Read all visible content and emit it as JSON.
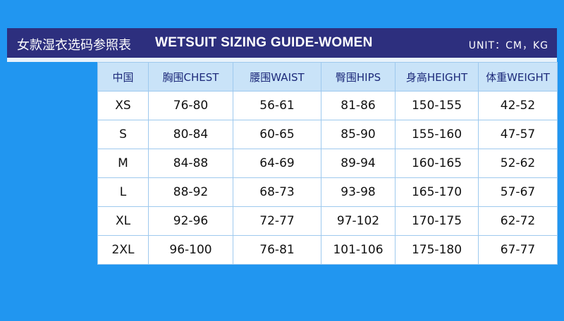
{
  "header": {
    "title_cn": "女款湿衣选码参照表",
    "title_en": "WETSUIT SIZING GUIDE-WOMEN",
    "unit": "UNIT：CM，KG"
  },
  "table": {
    "columns": [
      "中国",
      "胸围CHEST",
      "腰围WAIST",
      "臀围HIPS",
      "身高HEIGHT",
      "体重WEIGHT"
    ],
    "rows": [
      [
        "XS",
        "76-80",
        "56-61",
        "81-86",
        "150-155",
        "42-52"
      ],
      [
        "S",
        "80-84",
        "60-65",
        "85-90",
        "155-160",
        "47-57"
      ],
      [
        "M",
        "84-88",
        "64-69",
        "89-94",
        "160-165",
        "52-62"
      ],
      [
        "L",
        "88-92",
        "68-73",
        "93-98",
        "165-170",
        "57-67"
      ],
      [
        "XL",
        "92-96",
        "72-77",
        "97-102",
        "170-175",
        "62-72"
      ],
      [
        "2XL",
        "96-100",
        "76-81",
        "101-106",
        "175-180",
        "67-77"
      ]
    ]
  }
}
